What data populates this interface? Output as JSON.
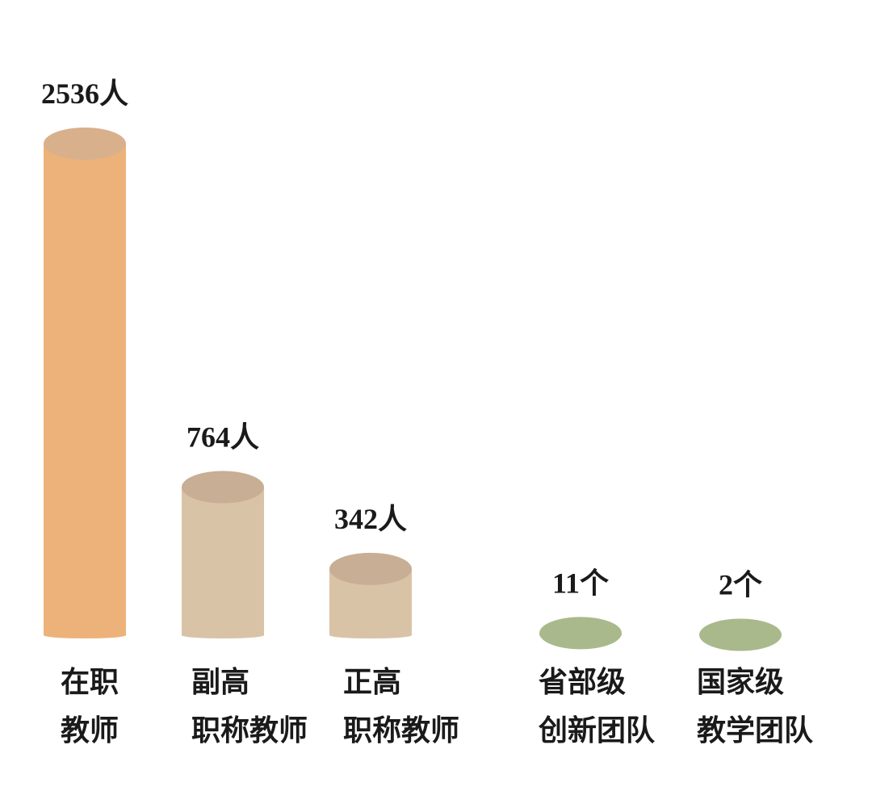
{
  "chart_data": {
    "type": "cylinder-bar",
    "categories": [
      [
        "在职",
        "教师"
      ],
      [
        "副高",
        "职称教师"
      ],
      [
        "正高",
        "职称教师"
      ],
      [
        "省部级",
        "创新团队"
      ],
      [
        "国家级",
        "教学团队"
      ]
    ],
    "values": [
      2536,
      764,
      342,
      11,
      2
    ],
    "value_labels": [
      "2536人",
      "764人",
      "342人",
      "11个",
      "2个"
    ],
    "colors": [
      "#edb27a",
      "#d9c3a6",
      "#d9c3a6",
      "#c9d39e",
      "#c9d39e"
    ],
    "cap_colors": [
      "#d9b08c",
      "#c8ae95",
      "#c8ae95",
      "#a9b98b",
      "#a9b98b"
    ]
  }
}
